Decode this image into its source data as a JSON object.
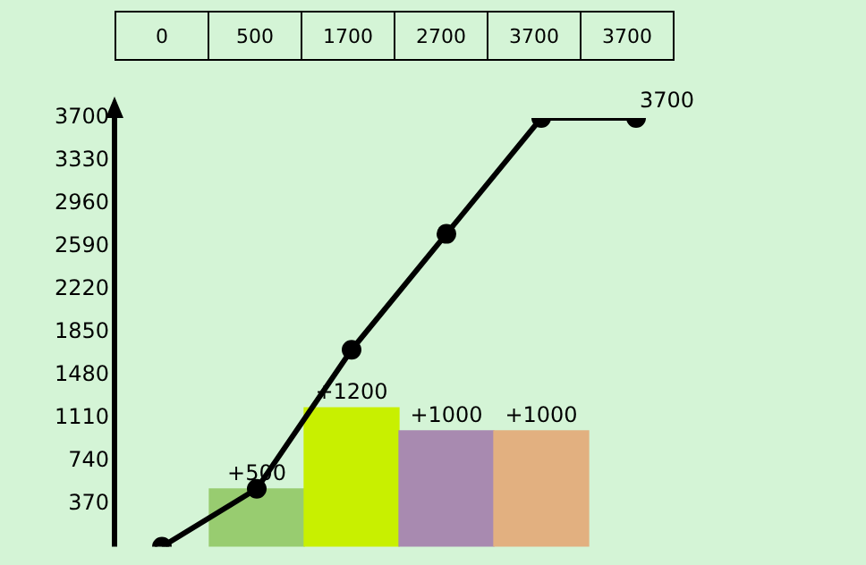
{
  "chart_data": {
    "type": "bar",
    "categories": [
      "0",
      "500",
      "1700",
      "2700",
      "3700",
      "3700"
    ],
    "series": [
      {
        "colors": [
          "#98cc70",
          "#98cc70",
          "#c8f000",
          "#a88ab0",
          "#e2b080",
          "#e2b080"
        ],
        "values": [
          null,
          500,
          1200,
          1000,
          1000,
          null
        ],
        "value_labels": [
          null,
          "+500",
          "+1200",
          "+1000",
          "+1000",
          null
        ]
      },
      {
        "type": "line",
        "color": "#000000",
        "values": [
          0,
          500,
          1700,
          2700,
          3700,
          3700
        ]
      }
    ],
    "marker": "circle",
    "ylim": [
      0,
      3700
    ],
    "yticks": [
      370,
      740,
      1110,
      1480,
      1850,
      2220,
      2590,
      2960,
      3330,
      3700
    ],
    "legend": false,
    "annotations": [
      "3700"
    ]
  }
}
